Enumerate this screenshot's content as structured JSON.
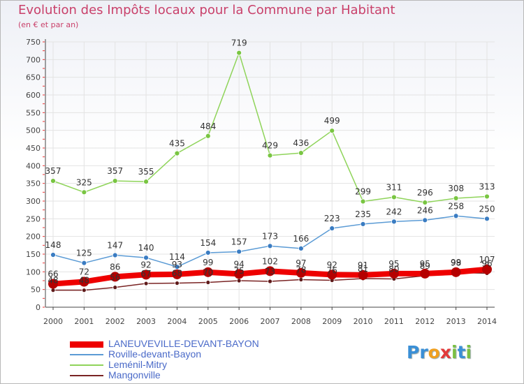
{
  "header": {
    "title": "Evolution des Impôts locaux pour la Commune par Habitant",
    "subtitle": "(en € et par an)"
  },
  "colors": {
    "title": "#c9406a",
    "axis": "#444444",
    "grid": "#e3e3e3",
    "tick_mark": "#ee3333",
    "legend_text": "#4a6ac8"
  },
  "logo": {
    "text": "Proxiti",
    "letters": [
      {
        "char": "P",
        "color": "#3a8fd6"
      },
      {
        "char": "r",
        "color": "#3a8fd6"
      },
      {
        "char": "o",
        "color": "#f0a020"
      },
      {
        "char": "x",
        "color": "#e23a3a"
      },
      {
        "char": "i",
        "color": "#7bc043"
      },
      {
        "char": "t",
        "color": "#3a8fd6"
      },
      {
        "char": "i",
        "color": "#7bc043"
      }
    ]
  },
  "chart_data": {
    "type": "line",
    "title": "Evolution des Impôts locaux pour la Commune par Habitant",
    "subtitle": "(en € et par an)",
    "xlabel": "",
    "ylabel": "",
    "categories": [
      "2000",
      "2001",
      "2002",
      "2003",
      "2004",
      "2005",
      "2006",
      "2007",
      "2008",
      "2009",
      "2010",
      "2011",
      "2012",
      "2013",
      "2014"
    ],
    "ylim": [
      0,
      750
    ],
    "yticks": [
      0,
      50,
      100,
      150,
      200,
      250,
      300,
      350,
      400,
      450,
      500,
      550,
      600,
      650,
      700,
      750
    ],
    "grid": true,
    "legend_position": "bottom-left",
    "series": [
      {
        "name": "LANEUVEVILLE-DEVANT-BAYON",
        "color": "#ee0000",
        "marker_color": "#b50000",
        "width": 8,
        "marker_radius": 7,
        "labels": "",
        "values": [
          66,
          72,
          86,
          92,
          93,
          99,
          94,
          102,
          97,
          92,
          91,
          95,
          95,
          99,
          107
        ]
      },
      {
        "name": "Roville-devant-Bayon",
        "color": "#5b9bd5",
        "marker_color": "#3a7cc2",
        "width": 1.5,
        "marker_radius": 3.5,
        "labels": "",
        "values": [
          148,
          125,
          147,
          140,
          114,
          154,
          157,
          173,
          166,
          223,
          235,
          242,
          246,
          258,
          250
        ]
      },
      {
        "name": "Leménil-Mitry",
        "color": "#8fd45a",
        "marker_color": "#79c542",
        "width": 1.5,
        "marker_radius": 3.5,
        "labels": "",
        "values": [
          357,
          325,
          357,
          355,
          435,
          484,
          719,
          429,
          436,
          499,
          299,
          311,
          296,
          308,
          313
        ]
      },
      {
        "name": "Mangonville",
        "color": "#7a2424",
        "marker_color": "#5e1a1a",
        "width": 1.5,
        "marker_radius": 3,
        "labels": "",
        "values": [
          48,
          48,
          56,
          67,
          68,
          70,
          75,
          73,
          78,
          76,
          81,
          80,
          89,
          98,
          96
        ]
      }
    ]
  }
}
